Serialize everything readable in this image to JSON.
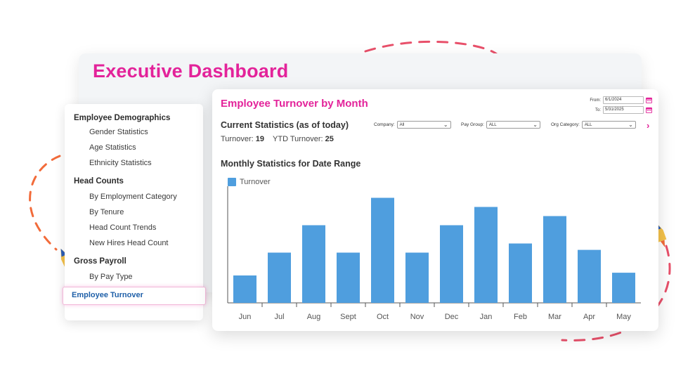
{
  "back_window": {
    "title": "Executive Dashboard"
  },
  "sidebar": {
    "groups": [
      {
        "label": "Employee Demographics",
        "items": [
          "Gender Statistics",
          "Age Statistics",
          "Ethnicity Statistics"
        ]
      },
      {
        "label": "Head Counts",
        "items": [
          "By Employment Category",
          "By Tenure",
          "Head Count Trends",
          "New Hires Head Count"
        ]
      },
      {
        "label": "Gross Payroll",
        "items": [
          "By Pay Type"
        ]
      }
    ],
    "active_item": "Employee Turnover"
  },
  "main": {
    "title": "Employee Turnover by Month",
    "from_label": "From:",
    "from_value": "6/1/2024",
    "to_label": "To:",
    "to_value": "5/31/2025",
    "current_stats_title": "Current Statistics (as of today)",
    "turnover_label": "Turnover:",
    "turnover_value": "19",
    "ytd_label": "YTD Turnover:",
    "ytd_value": "25",
    "filters": [
      {
        "label": "Company:",
        "value": "All"
      },
      {
        "label": "Pay Group:",
        "value": "ALL"
      },
      {
        "label": "Org Category:",
        "value": "ALL"
      }
    ],
    "monthly_title": "Monthly Statistics for Date Range"
  },
  "chart_data": {
    "type": "bar",
    "categories": [
      "Jun",
      "Jul",
      "Aug",
      "Sept",
      "Oct",
      "Nov",
      "Dec",
      "Jan",
      "Feb",
      "Mar",
      "Apr",
      "May"
    ],
    "series": [
      {
        "name": "Turnover",
        "values": [
          3,
          5.5,
          8.5,
          5.5,
          11.5,
          5.5,
          8.5,
          10.5,
          6.5,
          9.5,
          5.8,
          3.3
        ],
        "color": "#4f9ede"
      }
    ],
    "ylim": [
      0,
      12
    ],
    "grid": false,
    "legend": "top-left"
  },
  "colors": {
    "accent": "#e3239a",
    "bar": "#4f9ede",
    "deco_orange": "#f26b3a",
    "active_link": "#1e5fa8"
  }
}
